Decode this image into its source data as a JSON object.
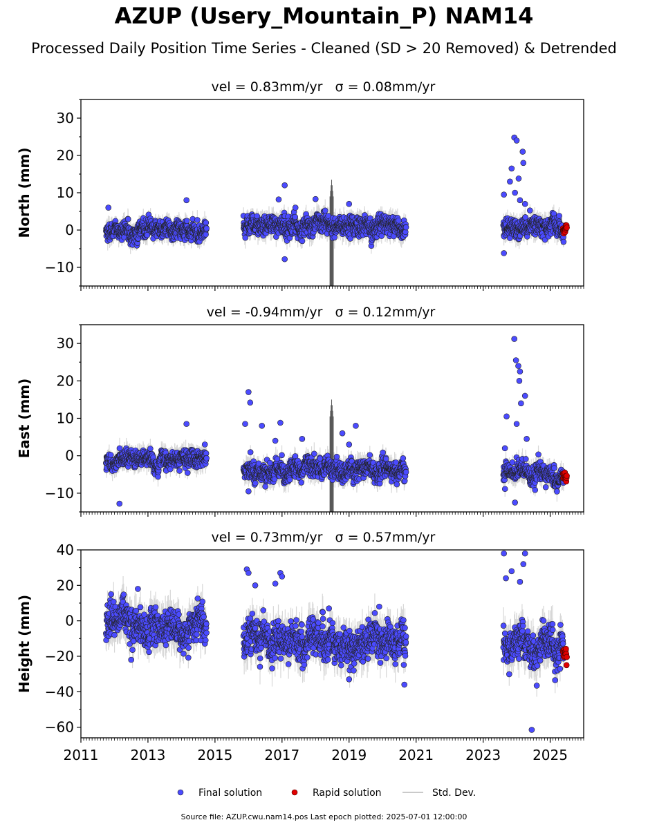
{
  "title": "AZUP (Usery_Mountain_P) NAM14",
  "subtitle": "Processed Daily Position Time Series - Cleaned (SD > 20 Removed) & Detrended",
  "footer": "Source file: AZUP.cwu.nam14.pos  Last epoch plotted: 2025-07-01 12:00:00",
  "colors": {
    "final": "#4b4bff",
    "rapid": "#e00000",
    "stddev": "#b8b8b8",
    "outline": "#222222"
  },
  "legend": {
    "final": "Final solution",
    "rapid": "Rapid solution",
    "stddev": "Std. Dev."
  },
  "chart_data": {
    "type": "scatter",
    "x_axis": {
      "range": [
        2011.0,
        2026.0
      ],
      "ticks": [
        2011,
        2013,
        2015,
        2017,
        2019,
        2021,
        2023,
        2025
      ],
      "tick_labels": [
        "2011",
        "2013",
        "2015",
        "2017",
        "2019",
        "2021",
        "2023",
        "2025"
      ]
    },
    "panels": [
      {
        "name": "north",
        "ylabel": "North (mm)",
        "subtitle_vel": "vel = 0.83mm/yr",
        "subtitle_sigma": "σ = 0.08mm/yr",
        "ylim": [
          -15,
          35
        ],
        "yticks": [
          -10,
          0,
          10,
          20,
          30
        ],
        "ytick_labels": [
          "−10",
          "0",
          "10",
          "20",
          "30"
        ],
        "segments": [
          {
            "start": 2011.75,
            "end": 2014.75,
            "mean": 0.0,
            "spread": 1.4,
            "sd": 2.0
          },
          {
            "start": 2015.85,
            "end": 2020.7,
            "mean": 1.0,
            "spread": 1.5,
            "sd": 2.2
          },
          {
            "start": 2023.6,
            "end": 2025.4,
            "mean": 0.7,
            "spread": 1.5,
            "sd": 2.0
          }
        ],
        "outliers": [
          [
            2011.82,
            6.0
          ],
          [
            2014.15,
            8.0
          ],
          [
            2017.08,
            12.0
          ],
          [
            2017.08,
            -7.8
          ],
          [
            2016.9,
            8.2
          ],
          [
            2017.4,
            6.0
          ],
          [
            2018.0,
            8.3
          ],
          [
            2019.0,
            7.0
          ],
          [
            2023.62,
            -6.2
          ],
          [
            2023.62,
            9.5
          ],
          [
            2023.85,
            16.5
          ],
          [
            2023.93,
            24.8
          ],
          [
            2024.0,
            24.0
          ],
          [
            2024.06,
            13.8
          ],
          [
            2024.18,
            21.0
          ],
          [
            2024.2,
            18.0
          ],
          [
            2023.95,
            10.0
          ],
          [
            2024.1,
            8.0
          ],
          [
            2023.8,
            13.0
          ],
          [
            2024.25,
            7.0
          ]
        ],
        "spike": {
          "x": 2018.48,
          "low": -15,
          "high": 13.5
        },
        "rapid": {
          "start": 2025.38,
          "end": 2025.5,
          "mean": 0.3,
          "spread": 0.5
        }
      },
      {
        "name": "east",
        "ylabel": "East (mm)",
        "subtitle_vel": "vel = -0.94mm/yr",
        "subtitle_sigma": "σ = 0.12mm/yr",
        "ylim": [
          -15,
          35
        ],
        "yticks": [
          -10,
          0,
          10,
          20,
          30
        ],
        "ytick_labels": [
          "−10",
          "0",
          "10",
          "20",
          "30"
        ],
        "segments": [
          {
            "start": 2011.75,
            "end": 2014.75,
            "mean": -1.0,
            "spread": 1.3,
            "sd": 2.0
          },
          {
            "start": 2015.85,
            "end": 2020.7,
            "mean": -3.5,
            "spread": 1.5,
            "sd": 2.2
          },
          {
            "start": 2023.6,
            "end": 2025.4,
            "mean": -5.0,
            "spread": 1.5,
            "sd": 2.0
          }
        ],
        "outliers": [
          [
            2012.15,
            -12.8
          ],
          [
            2014.15,
            8.5
          ],
          [
            2015.9,
            8.5
          ],
          [
            2016.0,
            17.0
          ],
          [
            2016.05,
            14.2
          ],
          [
            2016.0,
            -9.5
          ],
          [
            2016.4,
            8.0
          ],
          [
            2016.8,
            4.0
          ],
          [
            2016.95,
            8.8
          ],
          [
            2017.6,
            4.5
          ],
          [
            2018.8,
            6.0
          ],
          [
            2019.2,
            8.0
          ],
          [
            2019.0,
            3.0
          ],
          [
            2023.65,
            2.0
          ],
          [
            2023.7,
            10.5
          ],
          [
            2023.93,
            31.2
          ],
          [
            2023.98,
            25.5
          ],
          [
            2024.05,
            24.0
          ],
          [
            2024.08,
            20.0
          ],
          [
            2024.1,
            22.5
          ],
          [
            2024.13,
            14.0
          ],
          [
            2024.25,
            16.0
          ],
          [
            2024.0,
            8.5
          ],
          [
            2023.95,
            -12.5
          ],
          [
            2024.3,
            4.5
          ]
        ],
        "spike": {
          "x": 2018.48,
          "low": -15,
          "high": 15.0
        },
        "rapid": {
          "start": 2025.38,
          "end": 2025.5,
          "mean": -5.5,
          "spread": 0.6
        }
      },
      {
        "name": "height",
        "ylabel": "Height (mm)",
        "subtitle_vel": "vel = 0.73mm/yr",
        "subtitle_sigma": "σ = 0.57mm/yr",
        "ylim": [
          -66,
          40
        ],
        "yticks": [
          -60,
          -40,
          -20,
          0,
          20,
          40
        ],
        "ytick_labels": [
          "−60",
          "−40",
          "−20",
          "0",
          "20",
          "40"
        ],
        "segments": [
          {
            "start": 2011.75,
            "end": 2014.75,
            "mean": -3.0,
            "spread": 5.5,
            "sd": 8.0
          },
          {
            "start": 2015.85,
            "end": 2020.7,
            "mean": -12.0,
            "spread": 5.5,
            "sd": 8.0
          },
          {
            "start": 2023.6,
            "end": 2025.4,
            "mean": -14.0,
            "spread": 6.0,
            "sd": 8.0
          }
        ],
        "outliers": [
          [
            2011.9,
            15.0
          ],
          [
            2012.7,
            18.0
          ],
          [
            2015.95,
            29.0
          ],
          [
            2016.0,
            27.0
          ],
          [
            2016.2,
            20.0
          ],
          [
            2016.8,
            21.0
          ],
          [
            2016.95,
            27.0
          ],
          [
            2017.0,
            25.0
          ],
          [
            2018.4,
            7.0
          ],
          [
            2019.9,
            8.0
          ],
          [
            2024.45,
            -61.5
          ],
          [
            2023.62,
            38.0
          ],
          [
            2023.68,
            24.0
          ],
          [
            2023.85,
            28.0
          ],
          [
            2024.1,
            22.0
          ],
          [
            2024.2,
            32.0
          ],
          [
            2024.25,
            38.0
          ],
          [
            2020.65,
            -36.0
          ],
          [
            2019.0,
            -33.0
          ],
          [
            2012.5,
            -22.0
          ]
        ],
        "spike": null,
        "rapid": {
          "start": 2025.38,
          "end": 2025.5,
          "mean": -17.0,
          "spread": 2.5
        }
      }
    ]
  }
}
